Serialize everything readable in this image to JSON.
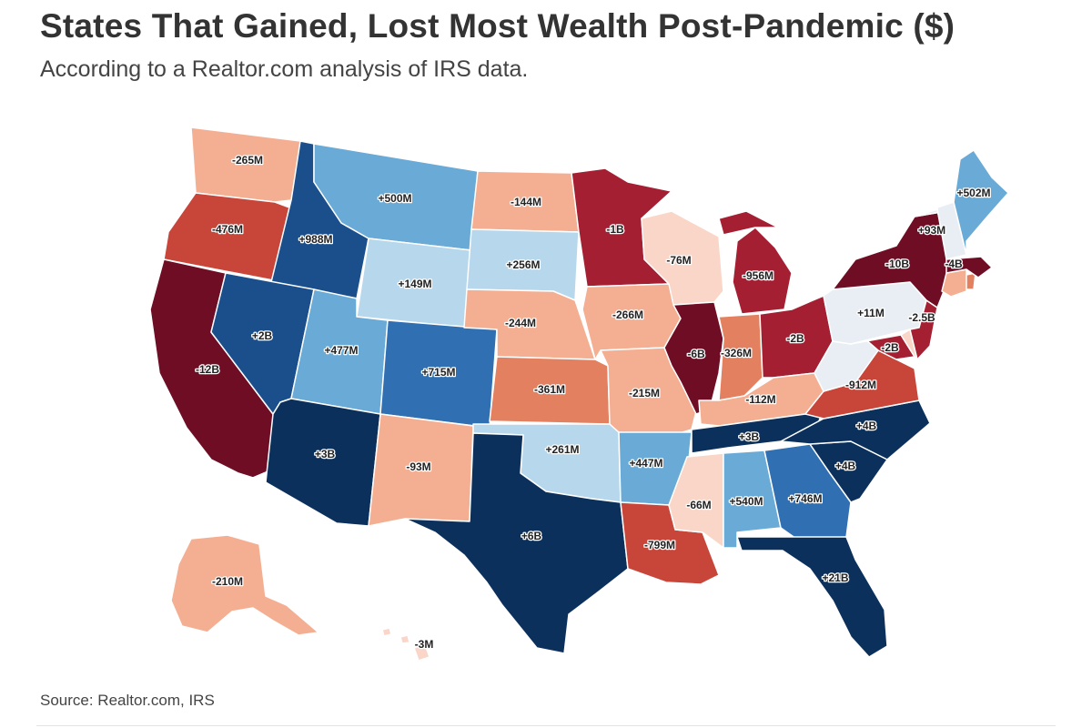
{
  "title": "States That Gained, Lost Most Wealth Post-Pandemic ($)",
  "subtitle": "According to a Realtor.com analysis of IRS data.",
  "source": "Source: Realtor.com, IRS",
  "map": {
    "type": "choropleth",
    "region": "United States",
    "colors": {
      "gain_darkest": "#0c305c",
      "gain_dark": "#1b4f8c",
      "gain_mid": "#2f6fb2",
      "gain_light": "#6aaad6",
      "gain_pale": "#b7d7ec",
      "near_zero": "#e8eef4",
      "loss_pale": "#f9d6c8",
      "loss_light": "#f4ae91",
      "loss_mid": "#e3805f",
      "loss_dark": "#c8453a",
      "loss_deep": "#a51f33",
      "loss_darkest": "#6e0d24"
    },
    "states": [
      {
        "id": "WA",
        "label": "-265M"
      },
      {
        "id": "OR",
        "label": "-476M"
      },
      {
        "id": "CA",
        "label": "-12B"
      },
      {
        "id": "ID",
        "label": "+988M"
      },
      {
        "id": "NV",
        "label": "+2B"
      },
      {
        "id": "MT",
        "label": "+500M"
      },
      {
        "id": "WY",
        "label": "+149M"
      },
      {
        "id": "UT",
        "label": "+477M"
      },
      {
        "id": "CO",
        "label": "+715M"
      },
      {
        "id": "AZ",
        "label": "+3B"
      },
      {
        "id": "NM",
        "label": "-93M"
      },
      {
        "id": "ND",
        "label": "-144M"
      },
      {
        "id": "SD",
        "label": "+256M"
      },
      {
        "id": "NE",
        "label": "-244M"
      },
      {
        "id": "KS",
        "label": "-361M"
      },
      {
        "id": "OK",
        "label": "+261M"
      },
      {
        "id": "TX",
        "label": "+6B"
      },
      {
        "id": "MN",
        "label": "-1B"
      },
      {
        "id": "IA",
        "label": "-266M"
      },
      {
        "id": "MO",
        "label": "-215M"
      },
      {
        "id": "AR",
        "label": "+447M"
      },
      {
        "id": "LA",
        "label": "-799M"
      },
      {
        "id": "WI",
        "label": "-76M"
      },
      {
        "id": "IL",
        "label": "-6B"
      },
      {
        "id": "MI",
        "label": "-956M"
      },
      {
        "id": "IN",
        "label": "-326M"
      },
      {
        "id": "OH",
        "label": "-2B"
      },
      {
        "id": "KY",
        "label": "-112M"
      },
      {
        "id": "TN",
        "label": "+3B"
      },
      {
        "id": "MS",
        "label": "-66M"
      },
      {
        "id": "AL",
        "label": "+540M"
      },
      {
        "id": "GA",
        "label": "+746M"
      },
      {
        "id": "FL",
        "label": "+21B"
      },
      {
        "id": "SC",
        "label": "+4B"
      },
      {
        "id": "NC",
        "label": "+4B"
      },
      {
        "id": "VA",
        "label": "-912M"
      },
      {
        "id": "WV",
        "label": ""
      },
      {
        "id": "MD",
        "label": "-2B"
      },
      {
        "id": "DE",
        "label": ""
      },
      {
        "id": "PA",
        "label": "+11M"
      },
      {
        "id": "NJ",
        "label": "-2.5B"
      },
      {
        "id": "NY",
        "label": "-10B"
      },
      {
        "id": "CT",
        "label": ""
      },
      {
        "id": "RI",
        "label": ""
      },
      {
        "id": "MA",
        "label": "-4B"
      },
      {
        "id": "VT",
        "label": ""
      },
      {
        "id": "NH",
        "label": "+93M"
      },
      {
        "id": "ME",
        "label": "+502M"
      },
      {
        "id": "AK",
        "label": "-210M"
      },
      {
        "id": "HI",
        "label": "-3M"
      }
    ]
  }
}
